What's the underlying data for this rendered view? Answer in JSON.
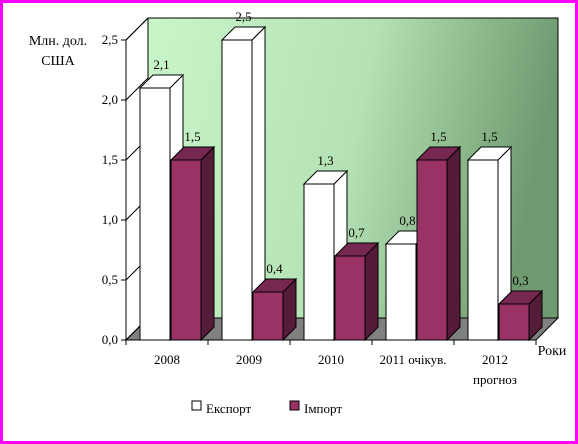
{
  "chart_data": {
    "type": "bar",
    "title": "",
    "ylabel_lines": [
      "Млн. дол.",
      "США"
    ],
    "xlabel": "Роки",
    "ylim": [
      0,
      2.5
    ],
    "yticks": [
      "0,0",
      "0,5",
      "1,0",
      "1,5",
      "2,0",
      "2,5"
    ],
    "categories": [
      {
        "lines": [
          "2008"
        ]
      },
      {
        "lines": [
          "2009"
        ]
      },
      {
        "lines": [
          "2010"
        ]
      },
      {
        "lines": [
          "2011 очікув."
        ]
      },
      {
        "lines": [
          "2012",
          "прогноз"
        ]
      }
    ],
    "series": [
      {
        "name": "Експорт",
        "values": [
          2.1,
          2.5,
          1.3,
          0.8,
          1.5
        ],
        "labels": [
          "2,1",
          "2,5",
          "1,3",
          "0,8",
          "1,5"
        ],
        "color": "#ffffff"
      },
      {
        "name": "Імпорт",
        "values": [
          1.5,
          0.4,
          0.7,
          1.5,
          0.3
        ],
        "labels": [
          "1,5",
          "0,4",
          "0,7",
          "1,5",
          "0,3"
        ],
        "color": "#993366"
      }
    ],
    "legend_position": "bottom",
    "grid": false,
    "colors": {
      "wall": "#c4f0c4",
      "floor": "#808080",
      "frame": "#ff00ff"
    }
  }
}
